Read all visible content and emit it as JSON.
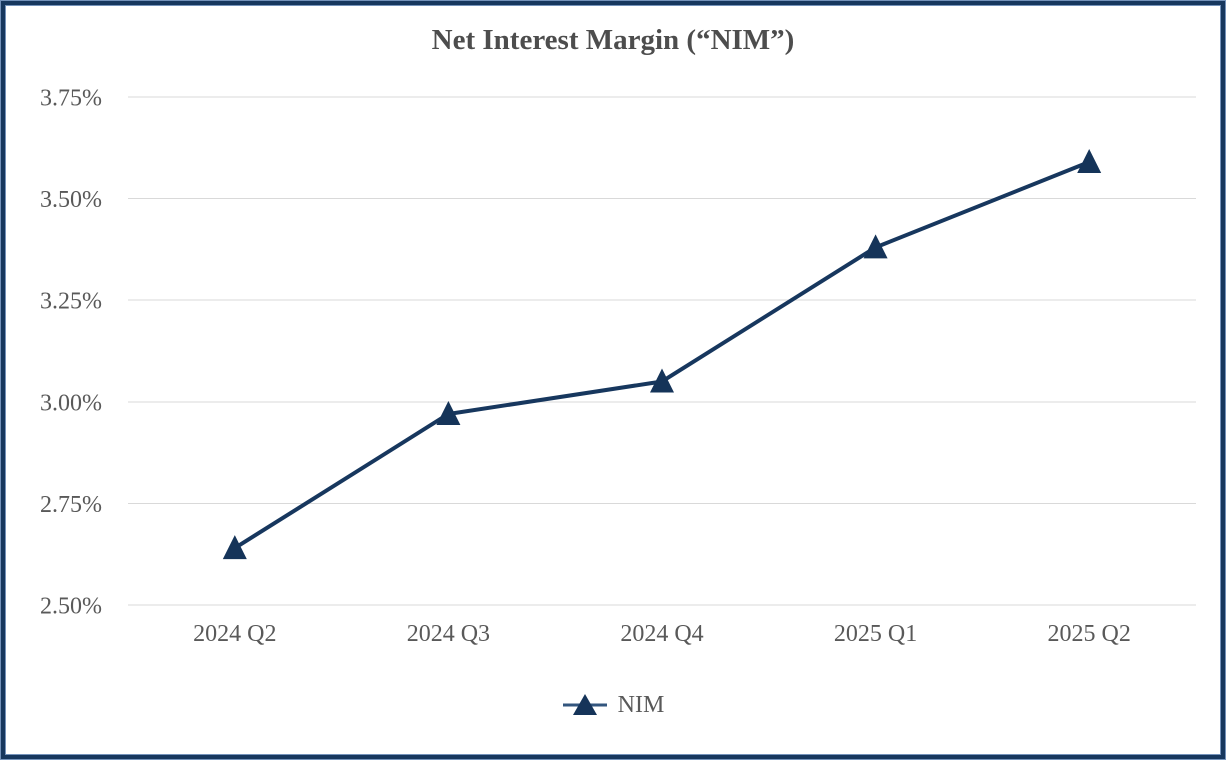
{
  "chart_data": {
    "type": "line",
    "title": "Net Interest Margin (“NIM”)",
    "categories": [
      "2024 Q2",
      "2024 Q3",
      "2024 Q4",
      "2025 Q1",
      "2025 Q2"
    ],
    "series": [
      {
        "name": "NIM",
        "values": [
          2.64,
          2.97,
          3.05,
          3.38,
          3.59
        ]
      }
    ],
    "xlabel": "",
    "ylabel": "",
    "ylim": [
      2.5,
      3.75
    ],
    "ytick_step": 0.25,
    "ytick_labels": [
      "2.50%",
      "2.75%",
      "3.00%",
      "3.25%",
      "3.50%",
      "3.75%"
    ],
    "grid": true,
    "legend_position": "bottom",
    "marker": "triangle",
    "colors": {
      "line": "#17375E",
      "marker": "#153459",
      "legend_line": "#33567E",
      "gridline": "#D9D9D9",
      "axis_text": "#595959",
      "title_text": "#4D4D4D",
      "frame_navy": "#17375E",
      "frame_accent": "#7492BA",
      "background": "#FFFFFF"
    }
  }
}
